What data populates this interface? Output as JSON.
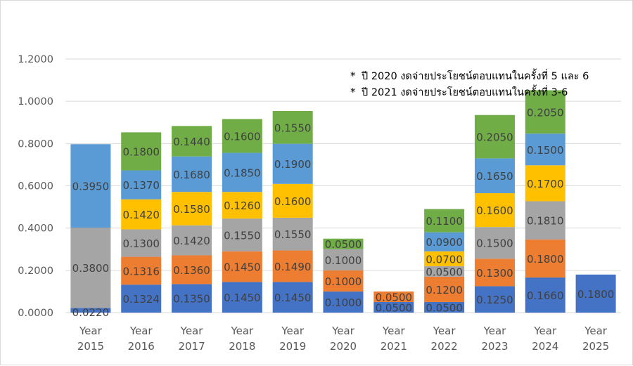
{
  "chart_data": {
    "type": "bar",
    "stacked": true,
    "title": "",
    "xlabel": "",
    "ylabel": "",
    "ylim": [
      0,
      1.2
    ],
    "yticks": [
      "0.0000",
      "0.2000",
      "0.4000",
      "0.6000",
      "0.8000",
      "1.0000",
      "1.2000"
    ],
    "grid": true,
    "legend": "none",
    "categories": [
      [
        "Year",
        "2015"
      ],
      [
        "Year",
        "2016"
      ],
      [
        "Year",
        "2017"
      ],
      [
        "Year",
        "2018"
      ],
      [
        "Year",
        "2019"
      ],
      [
        "Year",
        "2020"
      ],
      [
        "Year",
        "2021"
      ],
      [
        "Year",
        "2022"
      ],
      [
        "Year",
        "2023"
      ],
      [
        "Year",
        "2024"
      ],
      [
        "Year",
        "2025"
      ]
    ],
    "series": [
      {
        "color": "#4472c4",
        "values": [
          0.022,
          0.1324,
          0.135,
          0.145,
          0.145,
          0.1,
          0.05,
          0.05,
          0.125,
          0.166,
          0.18
        ],
        "labels": [
          "",
          "0.1324",
          "0.1350",
          "0.1450",
          "0.1450",
          "0.1000",
          "0.0500",
          "0.0500",
          "0.1250",
          "0.1660",
          "0.1800"
        ]
      },
      {
        "color": "#ed7d31",
        "values": [
          0,
          0.1316,
          0.136,
          0.145,
          0.149,
          0.1,
          0.05,
          0.12,
          0.13,
          0.18,
          0
        ],
        "labels": [
          "",
          "0.1316",
          "0.1360",
          "0.1450",
          "0.1490",
          "0.1000",
          "0.0500",
          "0.1200",
          "0.1300",
          "0.1800",
          ""
        ]
      },
      {
        "color": "#a5a5a5",
        "values": [
          0.38,
          0.13,
          0.142,
          0.155,
          0.155,
          0.1,
          0,
          0.05,
          0.15,
          0.181,
          0
        ],
        "labels": [
          "0.3800",
          "0.1300",
          "0.1420",
          "0.1550",
          "0.1550",
          "0.1000",
          "",
          "0.0500",
          "0.1500",
          "0.1810",
          ""
        ]
      },
      {
        "color": "#ffc000",
        "values": [
          0,
          0.142,
          0.158,
          0.126,
          0.16,
          0,
          0,
          0.07,
          0.16,
          0.17,
          0
        ],
        "labels": [
          "",
          "0.1420",
          "0.1580",
          "0.1260",
          "0.1600",
          "",
          "",
          "0.0700",
          "0.1600",
          "0.1700",
          ""
        ]
      },
      {
        "color": "#5b9bd5",
        "values": [
          0.395,
          0.137,
          0.168,
          0.185,
          0.19,
          0,
          0,
          0.09,
          0.165,
          0.15,
          0
        ],
        "labels": [
          "0.3950",
          "0.1370",
          "0.1680",
          "0.1850",
          "0.1900",
          "",
          "",
          "0.0900",
          "0.1650",
          "0.1500",
          ""
        ]
      },
      {
        "color": "#70ad47",
        "values": [
          0,
          0.18,
          0.144,
          0.16,
          0.155,
          0.05,
          0,
          0.11,
          0.205,
          0.205,
          0
        ],
        "labels": [
          "",
          "0.1800",
          "0.1440",
          "0.1600",
          "0.1550",
          "0.0500",
          "",
          "0.1100",
          "0.2050",
          "0.2050",
          ""
        ]
      }
    ],
    "extra_labels": [
      {
        "category_index": 0,
        "text": "0.0220"
      }
    ],
    "annotations": [
      "ปี 2020 งดจ่ายประโยชน์ตอบแทนในครั้งที่ 5 และ 6",
      "ปี 2021 งดจ่ายประโยชน์ตอบแทนในครั้งที่ 3-6"
    ],
    "annotation_marker": "*"
  }
}
